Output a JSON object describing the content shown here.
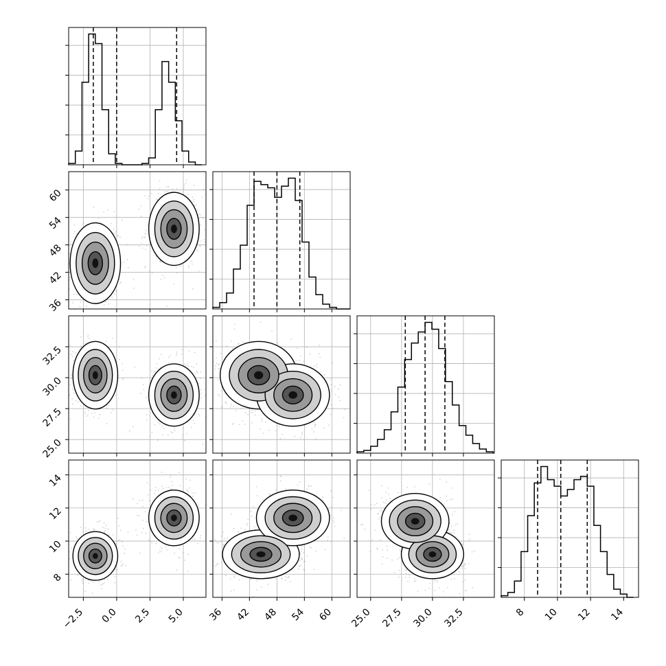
{
  "figure": {
    "kind": "corner-plot",
    "grid": true,
    "quantile_line_style": "dashed",
    "colors": {
      "line": "#000000",
      "grid": "#b0b0b0",
      "points": "#7f7f7f",
      "background": "#ffffff"
    }
  },
  "chart_data": {
    "type": "heatmap",
    "variables": [
      {
        "id": "p0",
        "range": [
          -3.6,
          6.7
        ],
        "ticks": [
          -2.5,
          0.0,
          2.5,
          5.0
        ],
        "tick_labels": [
          "−2.5",
          "0.0",
          "2.5",
          "5.0"
        ],
        "quantiles": [
          -1.75,
          0.0,
          4.5
        ]
      },
      {
        "id": "p1",
        "range": [
          34,
          64
        ],
        "ticks": [
          36,
          42,
          48,
          54,
          60
        ],
        "tick_labels": [
          "36",
          "42",
          "48",
          "54",
          "60"
        ],
        "quantiles": [
          43.0,
          48.0,
          53.0
        ]
      },
      {
        "id": "p2",
        "range": [
          23.9,
          35.0
        ],
        "ticks": [
          25.0,
          27.5,
          30.0,
          32.5
        ],
        "tick_labels": [
          "25.0",
          "27.5",
          "30.0",
          "32.5"
        ],
        "quantiles": [
          27.8,
          29.4,
          31.0
        ]
      },
      {
        "id": "p3",
        "range": [
          6.6,
          14.9
        ],
        "ticks": [
          8,
          10,
          12,
          14
        ],
        "tick_labels": [
          "8",
          "10",
          "12",
          "14"
        ],
        "quantiles": [
          8.8,
          10.2,
          11.8
        ]
      }
    ],
    "histograms": [
      {
        "variable": "p0",
        "bin_edges": [
          -3.6,
          -3.1,
          -2.6,
          -2.1,
          -1.6,
          -1.1,
          -0.6,
          -0.1,
          0.4,
          0.9,
          1.4,
          1.9,
          2.4,
          2.9,
          3.4,
          3.9,
          4.4,
          4.9,
          5.4,
          5.9,
          6.4
        ],
        "counts": [
          1,
          10,
          60,
          95,
          88,
          40,
          8,
          1,
          0,
          0,
          0,
          1,
          5,
          40,
          75,
          60,
          32,
          10,
          2,
          0
        ]
      },
      {
        "variable": "p1",
        "bin_edges": [
          34.0,
          35.5,
          37.0,
          38.5,
          40.0,
          41.5,
          43.0,
          44.5,
          46.0,
          47.5,
          49.0,
          50.5,
          52.0,
          53.5,
          55.0,
          56.5,
          58.0,
          59.5,
          61.0,
          62.5,
          64.0
        ],
        "counts": [
          1,
          4,
          10,
          25,
          40,
          65,
          80,
          78,
          76,
          70,
          77,
          82,
          68,
          42,
          20,
          9,
          3,
          1,
          0,
          0
        ]
      },
      {
        "variable": "p2",
        "bin_edges": [
          23.9,
          24.45,
          25.0,
          25.55,
          26.1,
          26.65,
          27.2,
          27.75,
          28.3,
          28.85,
          29.4,
          29.95,
          30.5,
          31.05,
          31.6,
          32.15,
          32.7,
          33.25,
          33.8,
          34.35,
          34.9
        ],
        "counts": [
          1,
          2,
          5,
          10,
          17,
          30,
          48,
          68,
          80,
          88,
          95,
          90,
          76,
          52,
          35,
          20,
          13,
          7,
          3,
          1
        ]
      },
      {
        "variable": "p3",
        "bin_edges": [
          6.6,
          7.0,
          7.4,
          7.8,
          8.2,
          8.6,
          9.0,
          9.4,
          9.8,
          10.2,
          10.6,
          11.0,
          11.4,
          11.8,
          12.2,
          12.6,
          13.0,
          13.4,
          13.8,
          14.2,
          14.6
        ],
        "counts": [
          1,
          3,
          10,
          28,
          50,
          70,
          80,
          72,
          68,
          62,
          66,
          72,
          74,
          68,
          44,
          28,
          14,
          5,
          2,
          0
        ]
      }
    ],
    "joint": [
      {
        "x": "p0",
        "y": "p1",
        "modes": [
          {
            "x": -1.6,
            "y": 44.0,
            "sx": 0.9,
            "sy": 4.2
          },
          {
            "x": 4.3,
            "y": 51.5,
            "sx": 0.9,
            "sy": 3.8
          }
        ]
      },
      {
        "x": "p0",
        "y": "p2",
        "modes": [
          {
            "x": -1.6,
            "y": 30.2,
            "sx": 0.8,
            "sy": 1.3
          },
          {
            "x": 4.3,
            "y": 28.6,
            "sx": 0.9,
            "sy": 1.2
          }
        ]
      },
      {
        "x": "p1",
        "y": "p2",
        "modes": [
          {
            "x": 44.0,
            "y": 30.2,
            "sx": 4.0,
            "sy": 1.3
          },
          {
            "x": 51.5,
            "y": 28.6,
            "sx": 3.8,
            "sy": 1.2
          }
        ]
      },
      {
        "x": "p0",
        "y": "p3",
        "modes": [
          {
            "x": -1.6,
            "y": 9.1,
            "sx": 0.8,
            "sy": 0.7
          },
          {
            "x": 4.3,
            "y": 11.4,
            "sx": 0.9,
            "sy": 0.8
          }
        ]
      },
      {
        "x": "p1",
        "y": "p3",
        "modes": [
          {
            "x": 44.5,
            "y": 9.2,
            "sx": 4.0,
            "sy": 0.7
          },
          {
            "x": 51.5,
            "y": 11.4,
            "sx": 3.8,
            "sy": 0.8
          }
        ]
      },
      {
        "x": "p2",
        "y": "p3",
        "modes": [
          {
            "x": 30.0,
            "y": 9.2,
            "sx": 1.2,
            "sy": 0.7
          },
          {
            "x": 28.6,
            "y": 11.2,
            "sx": 1.3,
            "sy": 0.8
          }
        ]
      }
    ]
  }
}
